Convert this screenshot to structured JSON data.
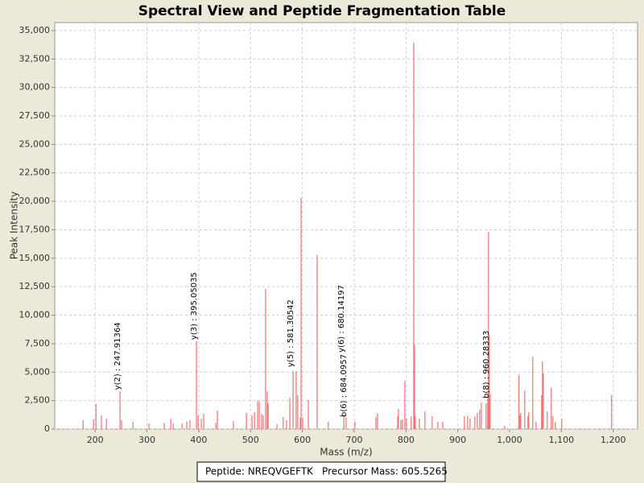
{
  "chart_data": {
    "type": "stem",
    "title": "Spectral View and Peptide Fragmentation Table",
    "xlabel": "Mass (m/z)",
    "ylabel": "Peak Intensity",
    "color": "#f07070",
    "grid": true,
    "xlim": [
      122,
      1247
    ],
    "ylim": [
      0,
      35700
    ],
    "xticks": [
      200,
      300,
      400,
      500,
      600,
      700,
      800,
      900,
      {
        "value": 1000,
        "label": "1,000"
      },
      {
        "value": 1100,
        "label": "1,100"
      },
      {
        "value": 1200,
        "label": "1,200"
      }
    ],
    "yticks": [
      0,
      {
        "value": 2500,
        "label": "2,500"
      },
      {
        "value": 5000,
        "label": "5,000"
      },
      {
        "value": 7500,
        "label": "7,500"
      },
      {
        "value": 10000,
        "label": "10,000"
      },
      {
        "value": 12500,
        "label": "12,500"
      },
      {
        "value": 15000,
        "label": "15,000"
      },
      {
        "value": 17500,
        "label": "17,500"
      },
      {
        "value": 20000,
        "label": "20,000"
      },
      {
        "value": 22500,
        "label": "22,500"
      },
      {
        "value": 25000,
        "label": "25,000"
      },
      {
        "value": 27500,
        "label": "27,500"
      },
      {
        "value": 30000,
        "label": "30,000"
      },
      {
        "value": 32500,
        "label": "32,500"
      },
      {
        "value": 35000,
        "label": "35,000"
      }
    ],
    "x": [
      176.7,
      196.9,
      201.6,
      212,
      221.7,
      248,
      251,
      273,
      304,
      333.5,
      346,
      350.6,
      367.7,
      377,
      383,
      395.6,
      398.8,
      405,
      409.6,
      433,
      436,
      467,
      492,
      502.8,
      507.5,
      513.7,
      516.8,
      521.4,
      524.5,
      529,
      532,
      533.9,
      551,
      563,
      569.5,
      575.8,
      582,
      588,
      591,
      596,
      597.5,
      600.6,
      611.5,
      628.6,
      650,
      680.1,
      684.4,
      701.5,
      742,
      745,
      784,
      785.4,
      790,
      793,
      797.8,
      801,
      810,
      815,
      816.5,
      818,
      825.8,
      836.6,
      850.6,
      861.5,
      870.8,
      912.7,
      919,
      923.6,
      932.9,
      937.6,
      942.2,
      945.3,
      954.7,
      957.8,
      959.3,
      960.9,
      962.4,
      990.4,
      1018,
      1019.9,
      1021.4,
      1029.2,
      1035.4,
      1037,
      1044.7,
      1051,
      1061.8,
      1063.4,
      1065,
      1072.7,
      1080.4,
      1083.5,
      1088.2,
      1100.6,
      1196.9
    ],
    "values": [
      780,
      850,
      2200,
      1200,
      900,
      3300,
      780,
      640,
      500,
      570,
      900,
      500,
      500,
      640,
      780,
      7700,
      1200,
      900,
      1350,
      570,
      1630,
      700,
      1400,
      1200,
      1500,
      2500,
      2400,
      1350,
      1200,
      12300,
      3300,
      2250,
      420,
      1050,
      780,
      2750,
      5100,
      5100,
      3000,
      1000,
      20300,
      1000,
      2550,
      15300,
      640,
      1200,
      1000,
      640,
      1050,
      1350,
      1130,
      1770,
      780,
      850,
      4200,
      920,
      1130,
      33950,
      7400,
      1130,
      920,
      1550,
      1130,
      640,
      640,
      1130,
      1130,
      920,
      1130,
      1410,
      1700,
      2330,
      2260,
      2700,
      17300,
      8270,
      3040,
      280,
      4740,
      1200,
      1410,
      3390,
      1130,
      1480,
      6360,
      640,
      2970,
      5940,
      4880,
      1550,
      3600,
      1130,
      640,
      920,
      2970
    ],
    "annotations": [
      {
        "text": "y(2) : 247.91364",
        "x": 248,
        "y": 3300
      },
      {
        "text": "y(3) : 395.05035",
        "x": 395.6,
        "y": 7700
      },
      {
        "text": "y(5) : 581.30542",
        "x": 582,
        "y": 5300
      },
      {
        "text": "y(6) : 680.14197",
        "x": 680.1,
        "y": 6580
      },
      {
        "text": "b(6) : 684.0957",
        "x": 684.4,
        "y": 920
      },
      {
        "text": "b(8) : 960.28333",
        "x": 959.3,
        "y": 2550
      }
    ],
    "info": [
      "Peptide: NREQVGEFTK",
      "Precursor Mass: 605.5265"
    ]
  }
}
